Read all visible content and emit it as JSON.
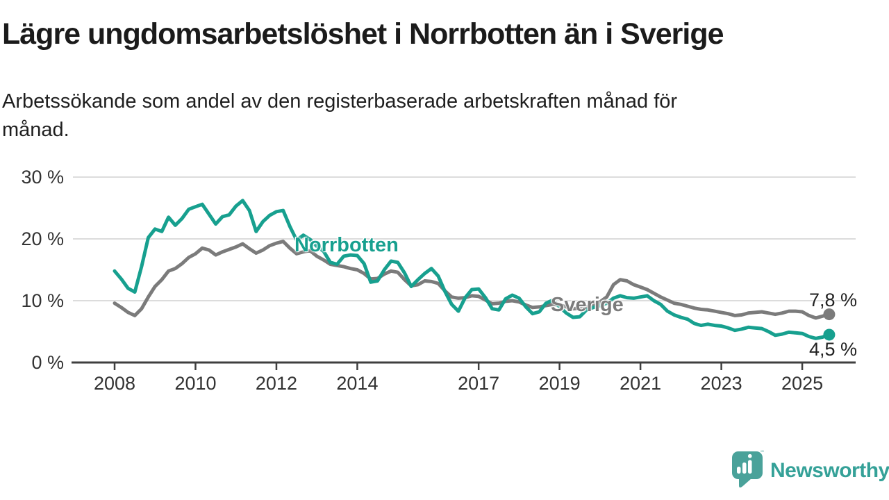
{
  "header": {
    "title": "Lägre ungdomsarbetslöshet i Norrbotten än i Sverige",
    "subtitle_line1": "Arbetssökande som andel av den registerbaserade arbetskraften månad för",
    "subtitle_line2": "månad."
  },
  "colors": {
    "norrbotten": "#17a08f",
    "sverige": "#7b7b7b",
    "grid": "#dcdcdc",
    "axis": "#3f3f3f",
    "tick_text": "#333333",
    "title_text": "#1b1b1b",
    "brand_teal": "#4aa29a"
  },
  "chart_data": {
    "type": "line",
    "title": "",
    "xlabel": "",
    "ylabel": "",
    "ylim": [
      0,
      30
    ],
    "xlim": [
      2006.97,
      2026.32
    ],
    "grid": "horizontal",
    "legend": "inline-labels",
    "y_ticks": [
      {
        "value": 0,
        "label": "0 %"
      },
      {
        "value": 10,
        "label": "10 %"
      },
      {
        "value": 20,
        "label": "20 %"
      },
      {
        "value": 30,
        "label": "30 %"
      }
    ],
    "x_ticks": [
      {
        "value": 2008,
        "label": "2008"
      },
      {
        "value": 2010,
        "label": "2010"
      },
      {
        "value": 2012,
        "label": "2012"
      },
      {
        "value": 2014,
        "label": "2014"
      },
      {
        "value": 2017,
        "label": "2017"
      },
      {
        "value": 2019,
        "label": "2019"
      },
      {
        "value": 2021,
        "label": "2021"
      },
      {
        "value": 2023,
        "label": "2023"
      },
      {
        "value": 2025,
        "label": "2025"
      }
    ],
    "x": [
      2008.0,
      2008.167,
      2008.333,
      2008.5,
      2008.667,
      2008.833,
      2009.0,
      2009.167,
      2009.333,
      2009.5,
      2009.667,
      2009.833,
      2010.0,
      2010.167,
      2010.333,
      2010.5,
      2010.667,
      2010.833,
      2011.0,
      2011.167,
      2011.333,
      2011.5,
      2011.667,
      2011.833,
      2012.0,
      2012.167,
      2012.333,
      2012.5,
      2012.667,
      2012.833,
      2013.0,
      2013.167,
      2013.333,
      2013.5,
      2013.667,
      2013.833,
      2014.0,
      2014.167,
      2014.333,
      2014.5,
      2014.667,
      2014.833,
      2015.0,
      2015.167,
      2015.333,
      2015.5,
      2015.667,
      2015.833,
      2016.0,
      2016.167,
      2016.333,
      2016.5,
      2016.667,
      2016.833,
      2017.0,
      2017.167,
      2017.333,
      2017.5,
      2017.667,
      2017.833,
      2018.0,
      2018.167,
      2018.333,
      2018.5,
      2018.667,
      2018.833,
      2019.0,
      2019.167,
      2019.333,
      2019.5,
      2019.667,
      2019.833,
      2020.0,
      2020.167,
      2020.333,
      2020.5,
      2020.667,
      2020.833,
      2021.0,
      2021.167,
      2021.333,
      2021.5,
      2021.667,
      2021.833,
      2022.0,
      2022.167,
      2022.333,
      2022.5,
      2022.667,
      2022.833,
      2023.0,
      2023.167,
      2023.333,
      2023.5,
      2023.667,
      2023.833,
      2024.0,
      2024.167,
      2024.333,
      2024.5,
      2024.667,
      2024.833,
      2025.0,
      2025.167,
      2025.333,
      2025.5,
      2025.667
    ],
    "series": [
      {
        "name": "Sverige",
        "color": "#7b7b7b",
        "end_label": "7,8 %",
        "end_value": 7.8,
        "values": [
          9.6,
          8.9,
          8.1,
          7.6,
          8.7,
          10.6,
          12.3,
          13.4,
          14.8,
          15.2,
          16.0,
          17.0,
          17.6,
          18.5,
          18.2,
          17.4,
          17.9,
          18.3,
          18.7,
          19.2,
          18.4,
          17.7,
          18.2,
          18.9,
          19.3,
          19.6,
          18.5,
          17.6,
          17.9,
          18.1,
          17.2,
          16.6,
          15.9,
          15.7,
          15.5,
          15.2,
          15.0,
          14.4,
          13.5,
          13.6,
          14.3,
          14.8,
          14.6,
          13.4,
          12.4,
          12.6,
          13.2,
          13.1,
          12.8,
          11.6,
          10.6,
          10.4,
          10.5,
          10.8,
          10.7,
          10.1,
          9.5,
          9.6,
          9.9,
          10.0,
          9.8,
          9.3,
          8.9,
          9.0,
          9.2,
          9.4,
          9.3,
          9.0,
          8.7,
          8.8,
          9.0,
          9.4,
          9.8,
          10.6,
          12.6,
          13.4,
          13.2,
          12.6,
          12.2,
          11.8,
          11.2,
          10.6,
          10.1,
          9.6,
          9.4,
          9.1,
          8.8,
          8.6,
          8.5,
          8.3,
          8.1,
          7.9,
          7.6,
          7.7,
          8.0,
          8.1,
          8.2,
          8.0,
          7.8,
          8.0,
          8.3,
          8.3,
          8.2,
          7.6,
          7.2,
          7.5,
          7.8
        ]
      },
      {
        "name": "Norrbotten",
        "color": "#17a08f",
        "end_label": "4,5 %",
        "end_value": 4.5,
        "values": [
          14.8,
          13.5,
          12.0,
          11.4,
          15.5,
          20.2,
          21.6,
          21.2,
          23.5,
          22.2,
          23.3,
          24.8,
          25.2,
          25.6,
          24.0,
          22.4,
          23.6,
          23.9,
          25.3,
          26.2,
          24.6,
          21.2,
          22.8,
          23.8,
          24.4,
          24.6,
          22.0,
          19.8,
          20.6,
          19.9,
          18.8,
          18.0,
          16.2,
          15.9,
          17.2,
          17.4,
          17.3,
          16.0,
          13.0,
          13.2,
          15.0,
          16.4,
          16.2,
          14.5,
          12.3,
          13.4,
          14.4,
          15.2,
          14.0,
          11.5,
          9.4,
          8.3,
          10.5,
          11.8,
          11.9,
          10.5,
          8.7,
          8.5,
          10.3,
          10.9,
          10.4,
          9.0,
          7.9,
          8.2,
          9.6,
          10.1,
          9.0,
          8.0,
          7.3,
          7.4,
          8.5,
          8.9,
          9.2,
          9.6,
          10.4,
          10.8,
          10.5,
          10.4,
          10.6,
          10.8,
          10.0,
          9.4,
          8.3,
          7.7,
          7.3,
          7.0,
          6.3,
          6.0,
          6.2,
          6.0,
          5.9,
          5.6,
          5.2,
          5.4,
          5.7,
          5.6,
          5.5,
          5.0,
          4.4,
          4.6,
          4.9,
          4.8,
          4.7,
          4.2,
          3.9,
          4.1,
          4.5
        ]
      }
    ]
  },
  "footer": {
    "brand": "Newsworthy"
  }
}
